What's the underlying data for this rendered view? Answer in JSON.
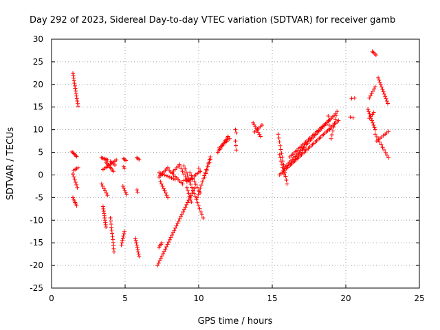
{
  "chart_data": {
    "type": "scatter",
    "title": "Day 292 of 2023, Sidereal Day-to-day VTEC variation (SDTVAR) for receiver gamb",
    "xlabel": "GPS time / hours",
    "ylabel": "SDTVAR / TECUs",
    "xlim": [
      0,
      25
    ],
    "ylim": [
      -25,
      30
    ],
    "xticks": [
      0,
      5,
      10,
      15,
      20,
      25
    ],
    "yticks": [
      -25,
      -20,
      -15,
      -10,
      -5,
      0,
      5,
      10,
      15,
      20,
      25,
      30
    ],
    "grid": true,
    "marker": "+",
    "color": "#ff0000",
    "tracks": [
      {
        "from": [
          1.45,
          22.5
        ],
        "to": [
          1.8,
          15.2
        ],
        "n": 14
      },
      {
        "from": [
          1.4,
          5.1
        ],
        "to": [
          1.7,
          4.1
        ],
        "n": 6
      },
      {
        "from": [
          1.45,
          0.2
        ],
        "to": [
          1.75,
          -2.8
        ],
        "n": 6
      },
      {
        "from": [
          1.5,
          1.0
        ],
        "to": [
          1.8,
          1.6
        ],
        "n": 4
      },
      {
        "from": [
          1.45,
          -5.0
        ],
        "to": [
          1.7,
          -6.8
        ],
        "n": 6
      },
      {
        "from": [
          3.4,
          3.8
        ],
        "to": [
          3.8,
          3.3
        ],
        "n": 6
      },
      {
        "from": [
          3.5,
          1.2
        ],
        "to": [
          4.4,
          3.3
        ],
        "n": 10
      },
      {
        "from": [
          3.7,
          2.8
        ],
        "to": [
          4.2,
          0.8
        ],
        "n": 8
      },
      {
        "from": [
          3.4,
          -2.0
        ],
        "to": [
          3.8,
          -4.5
        ],
        "n": 6
      },
      {
        "from": [
          3.5,
          -7.0
        ],
        "to": [
          3.7,
          -11.5
        ],
        "n": 10
      },
      {
        "from": [
          4.0,
          -9.5
        ],
        "to": [
          4.25,
          -17.0
        ],
        "n": 12
      },
      {
        "from": [
          4.0,
          3.0
        ],
        "to": [
          4.3,
          2.2
        ],
        "n": 4
      },
      {
        "from": [
          4.9,
          3.6
        ],
        "to": [
          5.05,
          3.2
        ],
        "n": 3
      },
      {
        "from": [
          4.9,
          1.8
        ],
        "to": [
          4.95,
          1.5
        ],
        "n": 2
      },
      {
        "from": [
          4.85,
          -2.5
        ],
        "to": [
          5.1,
          -4.3
        ],
        "n": 5
      },
      {
        "from": [
          4.95,
          -12.5
        ],
        "to": [
          4.75,
          -15.5
        ],
        "n": 7
      },
      {
        "from": [
          5.8,
          3.8
        ],
        "to": [
          5.95,
          3.4
        ],
        "n": 3
      },
      {
        "from": [
          5.8,
          -3.3
        ],
        "to": [
          5.85,
          -3.8
        ],
        "n": 2
      },
      {
        "from": [
          5.7,
          -14.0
        ],
        "to": [
          5.95,
          -18.0
        ],
        "n": 9
      },
      {
        "from": [
          7.4,
          -1.5
        ],
        "to": [
          7.9,
          -5.0
        ],
        "n": 8
      },
      {
        "from": [
          7.2,
          -20.0
        ],
        "to": [
          9.7,
          -3.0
        ],
        "n": 34
      },
      {
        "from": [
          7.3,
          -16.0
        ],
        "to": [
          7.5,
          -15.0
        ],
        "n": 4
      },
      {
        "from": [
          7.3,
          0.5
        ],
        "to": [
          8.4,
          -1.0
        ],
        "n": 10
      },
      {
        "from": [
          7.3,
          -0.5
        ],
        "to": [
          7.9,
          1.6
        ],
        "n": 8
      },
      {
        "from": [
          8.0,
          1.0
        ],
        "to": [
          8.9,
          -2.0
        ],
        "n": 10
      },
      {
        "from": [
          8.2,
          0.5
        ],
        "to": [
          8.7,
          2.3
        ],
        "n": 6
      },
      {
        "from": [
          8.7,
          2.0
        ],
        "to": [
          9.2,
          -1.0
        ],
        "n": 6
      },
      {
        "from": [
          9.0,
          -1.2
        ],
        "to": [
          9.6,
          -1.0
        ],
        "n": 5
      },
      {
        "from": [
          9.2,
          -1.5
        ],
        "to": [
          10.1,
          0.8
        ],
        "n": 10
      },
      {
        "from": [
          9.0,
          2.0
        ],
        "to": [
          10.3,
          -9.5
        ],
        "n": 18
      },
      {
        "from": [
          9.4,
          0.5
        ],
        "to": [
          10.1,
          -4.0
        ],
        "n": 8
      },
      {
        "from": [
          9.5,
          -6.0
        ],
        "to": [
          9.2,
          -2.8
        ],
        "n": 6
      },
      {
        "from": [
          9.9,
          -5.0
        ],
        "to": [
          10.8,
          4.0
        ],
        "n": 14
      },
      {
        "from": [
          10.0,
          1.5
        ],
        "to": [
          10.1,
          0.8
        ],
        "n": 2
      },
      {
        "from": [
          10.4,
          -0.5
        ],
        "to": [
          10.8,
          3.5
        ],
        "n": 6
      },
      {
        "from": [
          11.3,
          5.0
        ],
        "to": [
          12.0,
          8.5
        ],
        "n": 12
      },
      {
        "from": [
          11.4,
          6.0
        ],
        "to": [
          12.1,
          8.0
        ],
        "n": 8
      },
      {
        "from": [
          12.5,
          10.0
        ],
        "to": [
          12.55,
          9.3
        ],
        "n": 2
      },
      {
        "from": [
          12.5,
          7.5
        ],
        "to": [
          12.55,
          5.5
        ],
        "n": 3
      },
      {
        "from": [
          13.7,
          11.5
        ],
        "to": [
          14.2,
          8.5
        ],
        "n": 8
      },
      {
        "from": [
          13.8,
          9.5
        ],
        "to": [
          14.3,
          11.0
        ],
        "n": 6
      },
      {
        "from": [
          15.4,
          9.0
        ],
        "to": [
          16.0,
          -2.0
        ],
        "n": 14
      },
      {
        "from": [
          15.5,
          4.5
        ],
        "to": [
          15.8,
          0.2
        ],
        "n": 7
      },
      {
        "from": [
          15.5,
          0.0
        ],
        "to": [
          19.5,
          12.0
        ],
        "n": 44
      },
      {
        "from": [
          15.8,
          1.5
        ],
        "to": [
          19.3,
          13.5
        ],
        "n": 38
      },
      {
        "from": [
          16.2,
          4.0
        ],
        "to": [
          19.0,
          12.5
        ],
        "n": 30
      },
      {
        "from": [
          16.3,
          2.5
        ],
        "to": [
          17.2,
          6.0
        ],
        "n": 8
      },
      {
        "from": [
          19.0,
          8.0
        ],
        "to": [
          19.4,
          14.0
        ],
        "n": 8
      },
      {
        "from": [
          18.8,
          13.0
        ],
        "to": [
          18.9,
          10.0
        ],
        "n": 4
      },
      {
        "from": [
          20.3,
          12.8
        ],
        "to": [
          20.5,
          12.6
        ],
        "n": 2
      },
      {
        "from": [
          20.4,
          16.9
        ],
        "to": [
          20.6,
          17.0
        ],
        "n": 2
      },
      {
        "from": [
          21.5,
          14.5
        ],
        "to": [
          22.0,
          10.0
        ],
        "n": 10
      },
      {
        "from": [
          21.6,
          12.5
        ],
        "to": [
          21.9,
          13.8
        ],
        "n": 4
      },
      {
        "from": [
          21.6,
          17.0
        ],
        "to": [
          22.0,
          19.5
        ],
        "n": 6
      },
      {
        "from": [
          21.8,
          27.3
        ],
        "to": [
          22.05,
          26.5
        ],
        "n": 4
      },
      {
        "from": [
          22.0,
          9.0
        ],
        "to": [
          22.9,
          3.8
        ],
        "n": 10
      },
      {
        "from": [
          22.1,
          7.5
        ],
        "to": [
          22.9,
          9.6
        ],
        "n": 8
      },
      {
        "from": [
          22.2,
          21.5
        ],
        "to": [
          22.85,
          15.8
        ],
        "n": 12
      }
    ]
  }
}
